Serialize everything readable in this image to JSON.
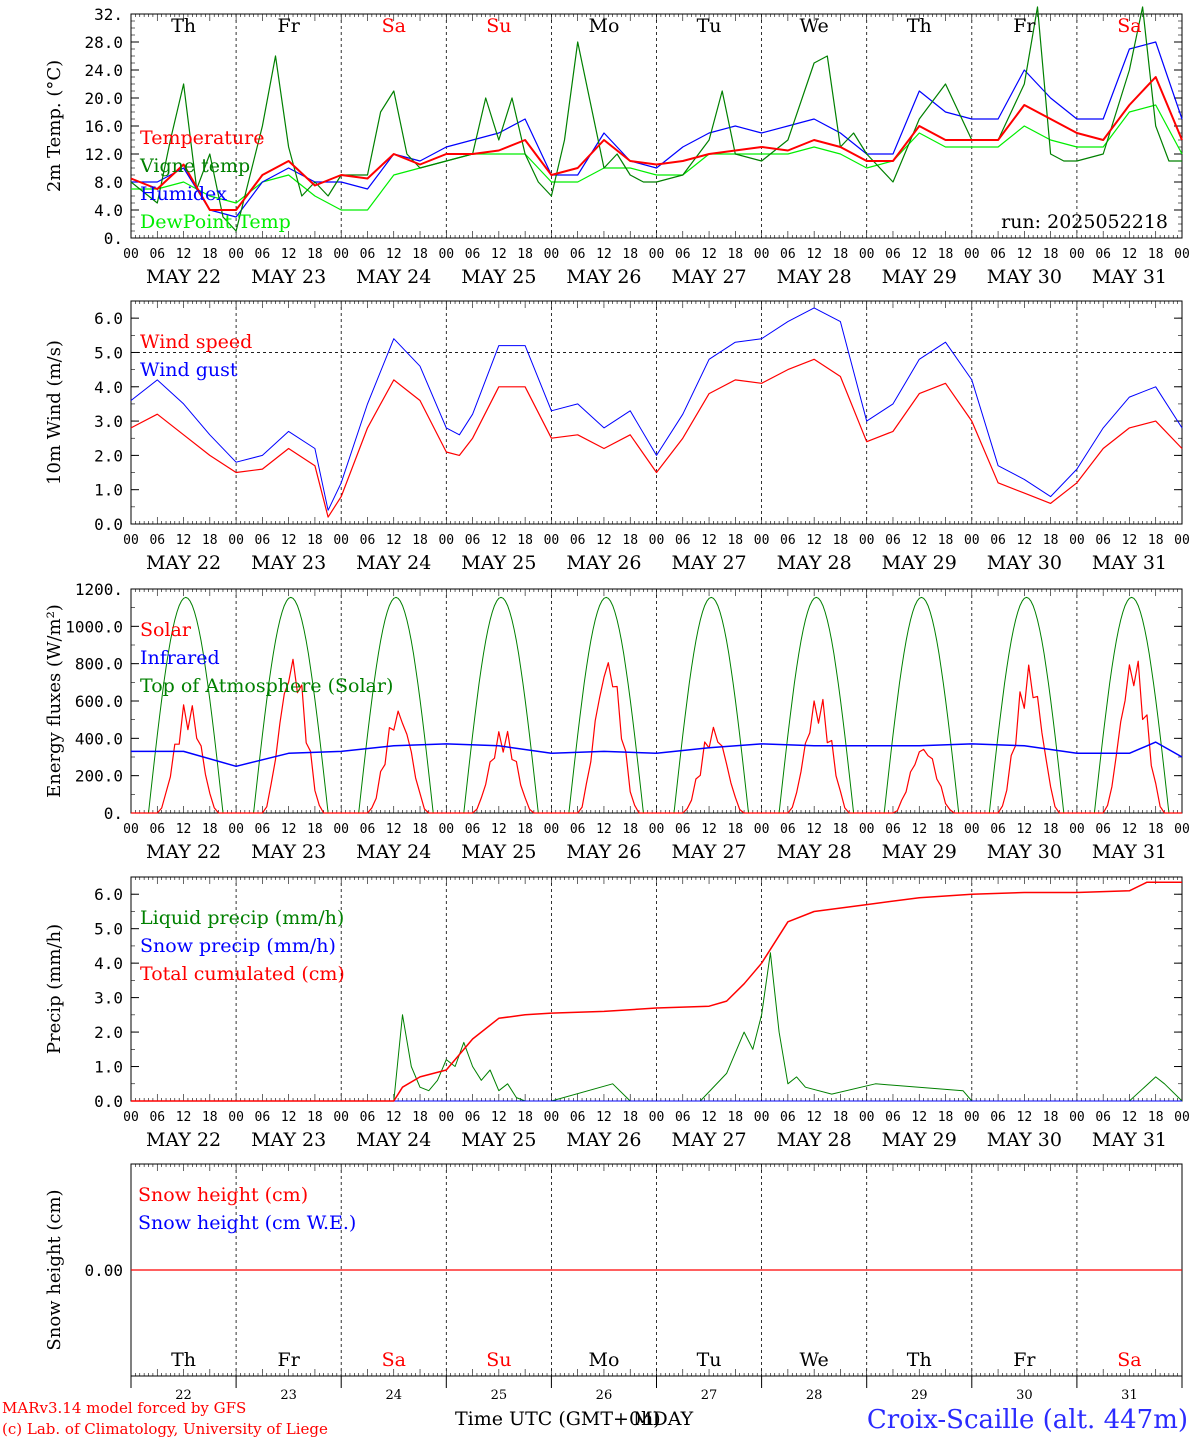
{
  "chart_data": {
    "type": "line",
    "days": [
      {
        "abbr": "Th",
        "date": "MAY 22",
        "num": "22",
        "weekend": false
      },
      {
        "abbr": "Fr",
        "date": "MAY 23",
        "num": "23",
        "weekend": false
      },
      {
        "abbr": "Sa",
        "date": "MAY 24",
        "num": "24",
        "weekend": true
      },
      {
        "abbr": "Su",
        "date": "MAY 25",
        "num": "25",
        "weekend": true
      },
      {
        "abbr": "Mo",
        "date": "MAY 26",
        "num": "26",
        "weekend": false
      },
      {
        "abbr": "Tu",
        "date": "MAY 27",
        "num": "27",
        "weekend": false
      },
      {
        "abbr": "We",
        "date": "MAY 28",
        "num": "28",
        "weekend": false
      },
      {
        "abbr": "Th",
        "date": "MAY 29",
        "num": "29",
        "weekend": false
      },
      {
        "abbr": "Fr",
        "date": "MAY 30",
        "num": "30",
        "weekend": false
      },
      {
        "abbr": "Sa",
        "date": "MAY 31",
        "num": "31",
        "weekend": true
      }
    ],
    "hour_ticks": [
      "00",
      "06",
      "12",
      "18"
    ],
    "x_unit": "hours since MAY 22 00 UTC",
    "panels": [
      {
        "id": "temperature",
        "ylabel": "2m Temp. (°C)",
        "ylim": [
          0,
          32
        ],
        "yticks": [
          "0.",
          "4.0",
          "8.0",
          "12.0",
          "16.0",
          "20.0",
          "24.0",
          "28.0",
          "32."
        ],
        "annotation": "run: 2025052218",
        "show_days_top": true,
        "series": [
          {
            "name": "Temperature",
            "color": "#ff0000",
            "width": 2,
            "x": [
              0,
              6,
              12,
              18,
              24,
              30,
              36,
              42,
              48,
              54,
              60,
              66,
              72,
              78,
              84,
              90,
              96,
              102,
              108,
              114,
              120,
              126,
              132,
              138,
              144,
              150,
              156,
              162,
              168,
              174,
              180,
              186,
              192,
              198,
              204,
              210,
              216,
              222,
              228,
              234,
              240
            ],
            "y": [
              8.5,
              7,
              10.5,
              4,
              4,
              9,
              11,
              7.5,
              9,
              8.5,
              12,
              10.5,
              12,
              12,
              12.5,
              14,
              9,
              10,
              14,
              11,
              10.5,
              11,
              12,
              12.5,
              13,
              12.5,
              14,
              13,
              11,
              11,
              16,
              14,
              14,
              14,
              19,
              17,
              15,
              14,
              19,
              23,
              14
            ]
          },
          {
            "name": "Vigne temp",
            "color": "#008000",
            "width": 1.2,
            "x": [
              0,
              6,
              9,
              12,
              15,
              18,
              21,
              24,
              30,
              33,
              36,
              39,
              42,
              45,
              48,
              54,
              57,
              60,
              63,
              66,
              72,
              78,
              81,
              84,
              87,
              90,
              93,
              96,
              99,
              102,
              108,
              111,
              114,
              117,
              120,
              126,
              132,
              135,
              138,
              144,
              150,
              156,
              159,
              162,
              165,
              168,
              174,
              180,
              186,
              192,
              198,
              204,
              207,
              210,
              213,
              216,
              222,
              228,
              231,
              234,
              237,
              240
            ],
            "y": [
              8,
              5,
              14,
              22,
              7,
              12,
              3,
              1,
              16,
              26,
              13,
              6,
              8,
              6,
              9,
              9,
              18,
              21,
              12,
              10,
              11,
              12,
              20,
              14,
              20,
              12,
              8,
              6,
              14,
              28,
              10,
              12,
              9,
              8,
              8,
              9,
              14,
              21,
              12,
              11,
              14,
              25,
              26,
              13,
              15,
              12,
              8,
              17,
              22,
              14,
              14,
              22,
              33,
              12,
              11,
              11,
              12,
              24,
              33,
              16,
              11,
              11
            ]
          },
          {
            "name": "Humidex",
            "color": "#0000ff",
            "width": 1.2,
            "x": [
              0,
              6,
              12,
              18,
              24,
              30,
              36,
              42,
              48,
              54,
              60,
              66,
              72,
              78,
              84,
              90,
              96,
              102,
              108,
              114,
              120,
              126,
              132,
              138,
              144,
              150,
              156,
              162,
              168,
              174,
              180,
              186,
              192,
              198,
              204,
              210,
              216,
              222,
              228,
              234,
              240
            ],
            "y": [
              8,
              8,
              10,
              4,
              3,
              8,
              10,
              8,
              8,
              7,
              12,
              11,
              13,
              14,
              15,
              17,
              9,
              9,
              15,
              11,
              10,
              13,
              15,
              16,
              15,
              16,
              17,
              15,
              12,
              12,
              21,
              18,
              17,
              17,
              24,
              20,
              17,
              17,
              27,
              28,
              17
            ]
          },
          {
            "name": "DewPoint Temp",
            "color": "#00ee00",
            "width": 1.2,
            "x": [
              0,
              6,
              12,
              18,
              24,
              30,
              36,
              42,
              48,
              54,
              60,
              66,
              72,
              78,
              84,
              90,
              96,
              102,
              108,
              114,
              120,
              126,
              132,
              138,
              144,
              150,
              156,
              162,
              168,
              174,
              180,
              186,
              192,
              198,
              204,
              210,
              216,
              222,
              228,
              234,
              240
            ],
            "y": [
              7,
              7,
              8,
              6,
              5,
              8,
              9,
              6,
              4,
              4,
              9,
              10,
              11,
              12,
              12,
              12,
              8,
              8,
              10,
              10,
              9,
              9,
              12,
              12,
              12,
              12,
              13,
              12,
              10,
              11,
              15,
              13,
              13,
              13,
              16,
              14,
              13,
              13,
              18,
              19,
              12
            ]
          }
        ]
      },
      {
        "id": "wind",
        "ylabel": "10m Wind (m/s)",
        "ylim": [
          0,
          6.5
        ],
        "yticks": [
          "0.0",
          "1.0",
          "2.0",
          "3.0",
          "4.0",
          "5.0",
          "6.0"
        ],
        "ytick_values": [
          0,
          1,
          2,
          3,
          4,
          5,
          6
        ],
        "dashed_level": 5.0,
        "series": [
          {
            "name": "Wind speed",
            "color": "#ff0000",
            "width": 1.2,
            "x": [
              0,
              6,
              12,
              18,
              24,
              30,
              36,
              42,
              45,
              48,
              54,
              60,
              66,
              72,
              75,
              78,
              84,
              90,
              96,
              102,
              108,
              114,
              120,
              126,
              132,
              138,
              144,
              150,
              156,
              162,
              168,
              174,
              180,
              186,
              192,
              198,
              204,
              210,
              216,
              222,
              228,
              234,
              240
            ],
            "y": [
              2.8,
              3.2,
              2.6,
              2.0,
              1.5,
              1.6,
              2.2,
              1.7,
              0.2,
              0.8,
              2.8,
              4.2,
              3.6,
              2.1,
              2.0,
              2.5,
              4.0,
              4.0,
              2.5,
              2.6,
              2.2,
              2.6,
              1.5,
              2.5,
              3.8,
              4.2,
              4.1,
              4.5,
              4.8,
              4.3,
              2.4,
              2.7,
              3.8,
              4.1,
              3.0,
              1.2,
              0.9,
              0.6,
              1.2,
              2.2,
              2.8,
              3.0,
              2.2
            ]
          },
          {
            "name": "Wind gust",
            "color": "#0000ff",
            "width": 1,
            "x": [
              0,
              6,
              12,
              18,
              24,
              30,
              36,
              42,
              45,
              48,
              54,
              60,
              66,
              72,
              75,
              78,
              84,
              90,
              96,
              102,
              108,
              114,
              120,
              126,
              132,
              138,
              144,
              150,
              156,
              162,
              168,
              174,
              180,
              186,
              192,
              198,
              204,
              210,
              216,
              222,
              228,
              234,
              240
            ],
            "y": [
              3.6,
              4.2,
              3.5,
              2.6,
              1.8,
              2.0,
              2.7,
              2.2,
              0.4,
              1.2,
              3.5,
              5.4,
              4.6,
              2.8,
              2.6,
              3.2,
              5.2,
              5.2,
              3.3,
              3.5,
              2.8,
              3.3,
              2.0,
              3.2,
              4.8,
              5.3,
              5.4,
              5.9,
              6.3,
              5.9,
              3.0,
              3.5,
              4.8,
              5.3,
              4.2,
              1.7,
              1.3,
              0.8,
              1.6,
              2.8,
              3.7,
              4.0,
              2.8
            ]
          }
        ]
      },
      {
        "id": "energy",
        "ylabel": "Energy fluxes (W/m²)",
        "ylim": [
          0,
          1200
        ],
        "yticks": [
          "0.",
          "200.0",
          "400.0",
          "600.0",
          "800.0",
          "1000.0",
          "1200."
        ],
        "ytick_values": [
          0,
          200,
          400,
          600,
          800,
          1000,
          1200
        ],
        "series": [
          {
            "name": "Solar",
            "color": "#ff0000",
            "width": 1.2,
            "peaks": [
              610,
              850,
              570,
              460,
              850,
              470,
              640,
              370,
              800,
              860
            ],
            "peak_hour": 13
          },
          {
            "name": "Infrared",
            "color": "#0000ff",
            "width": 1.5,
            "x": [
              0,
              12,
              24,
              36,
              48,
              60,
              72,
              84,
              96,
              108,
              120,
              132,
              144,
              156,
              168,
              180,
              192,
              204,
              216,
              228,
              234,
              240
            ],
            "y": [
              330,
              330,
              250,
              320,
              330,
              360,
              370,
              360,
              320,
              330,
              320,
              350,
              370,
              360,
              360,
              360,
              370,
              360,
              320,
              320,
              380,
              300
            ]
          },
          {
            "name": "Top of Atmosphere (Solar)",
            "color": "#008000",
            "width": 1,
            "peak_value": 1155,
            "sunrise_hour": 4,
            "sunset_hour": 21
          }
        ]
      },
      {
        "id": "precip",
        "ylabel": "Precip (mm/h)",
        "ylim": [
          0,
          6.5
        ],
        "yticks": [
          "0.0",
          "1.0",
          "2.0",
          "3.0",
          "4.0",
          "5.0",
          "6.0"
        ],
        "ytick_values": [
          0,
          1,
          2,
          3,
          4,
          5,
          6
        ],
        "series": [
          {
            "name": "Liquid precip (mm/h)",
            "color": "#008000",
            "width": 1,
            "x": [
              0,
              60,
              62,
              64,
              66,
              68,
              70,
              72,
              74,
              76,
              78,
              80,
              82,
              84,
              86,
              88,
              90,
              92,
              96,
              110,
              114,
              130,
              136,
              140,
              142,
              144,
              146,
              148,
              150,
              152,
              154,
              160,
              170,
              190,
              192,
              228,
              234,
              236,
              240
            ],
            "y": [
              0,
              0,
              2.5,
              1.0,
              0.4,
              0.3,
              0.6,
              1.2,
              1.0,
              1.7,
              1.0,
              0.6,
              0.9,
              0.3,
              0.5,
              0.1,
              0,
              0,
              0,
              0.5,
              0,
              0,
              0.8,
              2.0,
              1.5,
              2.5,
              4.3,
              2.0,
              0.5,
              0.7,
              0.4,
              0.2,
              0.5,
              0.3,
              0,
              0,
              0.7,
              0.5,
              0
            ]
          },
          {
            "name": "Snow precip (mm/h)",
            "color": "#0000ff",
            "width": 1,
            "x": [
              0,
              240
            ],
            "y": [
              0,
              0
            ]
          },
          {
            "name": "Total cumulated (cm)",
            "color": "#ff0000",
            "width": 1.5,
            "x": [
              0,
              48,
              60,
              62,
              66,
              72,
              78,
              84,
              90,
              96,
              108,
              120,
              132,
              136,
              140,
              144,
              150,
              156,
              168,
              180,
              192,
              204,
              216,
              228,
              232,
              240
            ],
            "y": [
              0,
              0,
              0,
              0.4,
              0.7,
              0.9,
              1.8,
              2.4,
              2.5,
              2.55,
              2.6,
              2.7,
              2.75,
              2.9,
              3.4,
              4.0,
              5.2,
              5.5,
              5.7,
              5.9,
              6.0,
              6.05,
              6.05,
              6.1,
              6.35,
              6.35
            ]
          }
        ]
      },
      {
        "id": "snow",
        "ylabel": "Snow height (cm)",
        "ytick_single": "0.00",
        "series": [
          {
            "name": "Snow height (cm)",
            "color": "#ff0000",
            "value": 0
          },
          {
            "name": "Snow height (cm W.E.)",
            "color": "#0000ff",
            "value": 0
          }
        ]
      }
    ],
    "xlabel": "Time UTC (GMT+0h)",
    "xlabel_overlap": "MDAY"
  },
  "footer": {
    "credit_line1": "MARv3.14 model forced by GFS",
    "credit_line2": "(c) Lab. of Climatology, University of Liege",
    "station": "Croix-Scaille (alt. 447m)"
  },
  "colors": {
    "weekend": "#ff0000",
    "weekday": "#000000",
    "station": "#2b2bff",
    "credit": "#ff0000"
  }
}
